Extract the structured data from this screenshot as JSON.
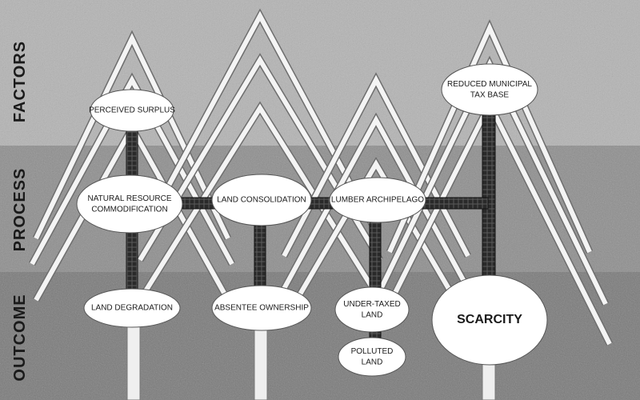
{
  "bands": {
    "factors": "FACTORS",
    "process": "PROCESS",
    "outcome": "OUTCOME"
  },
  "nodes": {
    "perceived_surplus": [
      "PERCEIVED SURPLUS"
    ],
    "reduced_tax_base": [
      "REDUCED MUNICIPAL",
      "TAX BASE"
    ],
    "commodification": [
      "NATURAL RESOURCE",
      "COMMODIFICATION"
    ],
    "land_consolidation": [
      "LAND CONSOLIDATION"
    ],
    "lumber_archipelago": [
      "LUMBER ARCHIPELAGO"
    ],
    "land_degradation": [
      "LAND DEGRADATION"
    ],
    "absentee_ownership": [
      "ABSENTEE OWNERSHIP"
    ],
    "under_taxed_land": [
      "UNDER-TAXED",
      "LAND"
    ],
    "polluted_land": [
      "POLLUTED",
      "LAND"
    ],
    "scarcity": [
      "SCARCITY"
    ]
  },
  "colors": {
    "factors_band": "#b4b4b4",
    "process_band": "#8e8e8e",
    "outcome_band": "#7a7a7a",
    "branch": "#f4f4f4",
    "trunk": "#2a2a2a",
    "node_fill": "#ffffff",
    "text": "#1a1a1a"
  }
}
